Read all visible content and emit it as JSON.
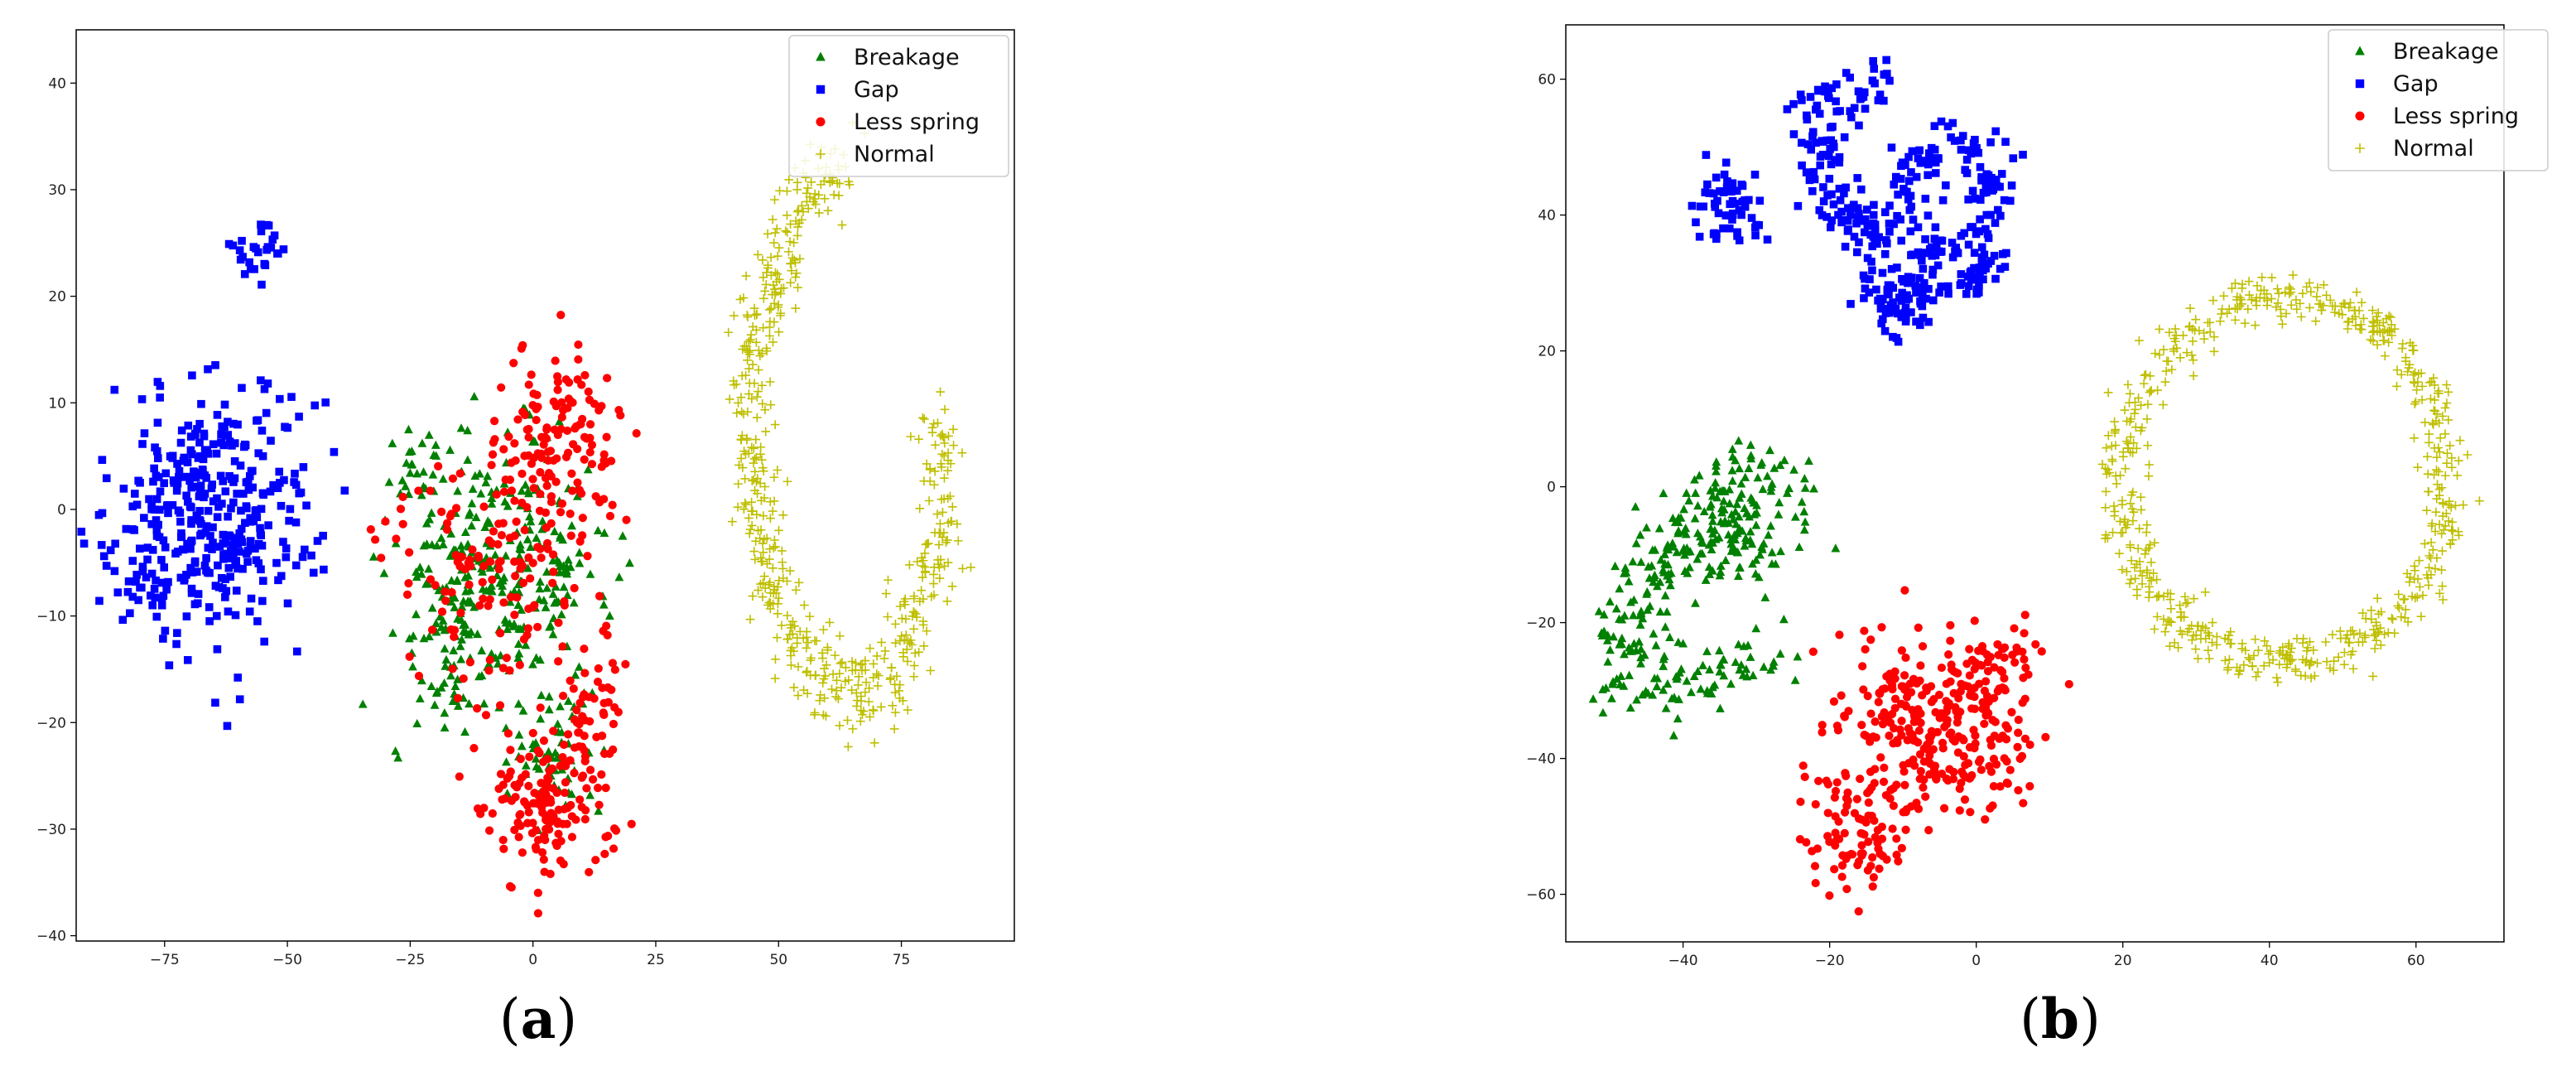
{
  "chart_data": [
    {
      "type": "scatter",
      "caption_letter": "a",
      "title": "",
      "xlabel": "",
      "ylabel": "",
      "xlim": [
        -93,
        98
      ],
      "ylim": [
        -40.5,
        45
      ],
      "xticks": [
        -75,
        -50,
        -25,
        0,
        25,
        50,
        75
      ],
      "xtick_labels": [
        "−75",
        "−50",
        "−25",
        "0",
        "25",
        "50",
        "75"
      ],
      "yticks": [
        -40,
        -30,
        -20,
        -10,
        0,
        10,
        20,
        30,
        40
      ],
      "ytick_labels": [
        "−40",
        "−30",
        "−20",
        "−10",
        "0",
        "10",
        "20",
        "30",
        "40"
      ],
      "grid": false,
      "legend_position": "top-right",
      "series": [
        {
          "name": "Breakage",
          "marker": "triangle",
          "color": "#008000",
          "regions": [
            {
              "shape": "blob",
              "center": [
                -6,
                -6
              ],
              "radius": [
                20,
                11
              ],
              "count": 270
            },
            {
              "shape": "blob",
              "center": [
                -15,
                -12
              ],
              "radius": [
                10,
                8
              ],
              "count": 60
            },
            {
              "shape": "blob",
              "center": [
                5,
                -23
              ],
              "radius": [
                8,
                5
              ],
              "count": 50
            },
            {
              "shape": "blob",
              "center": [
                -24,
                4
              ],
              "radius": [
                6,
                4
              ],
              "count": 25
            }
          ]
        },
        {
          "name": "Gap",
          "marker": "square",
          "color": "#0000ff",
          "regions": [
            {
              "shape": "blob",
              "center": [
                -65,
                0
              ],
              "radius": [
                19,
                11
              ],
              "count": 380
            },
            {
              "shape": "blob",
              "center": [
                -56,
                24.5
              ],
              "radius": [
                4.5,
                2.5
              ],
              "count": 28
            },
            {
              "shape": "blob",
              "center": [
                -80,
                -8
              ],
              "radius": [
                5,
                3
              ],
              "count": 18
            }
          ]
        },
        {
          "name": "Less spring",
          "marker": "circle",
          "color": "#ff0000",
          "regions": [
            {
              "shape": "blob",
              "center": [
                6,
                6
              ],
              "radius": [
                11,
                9
              ],
              "count": 140
            },
            {
              "shape": "blob",
              "center": [
                3,
                -28
              ],
              "radius": [
                12,
                6
              ],
              "count": 150
            },
            {
              "shape": "blob",
              "center": [
                -10,
                -5
              ],
              "radius": [
                20,
                12
              ],
              "count": 130
            },
            {
              "shape": "blob",
              "center": [
                12,
                -18
              ],
              "radius": [
                7,
                7
              ],
              "count": 50
            }
          ]
        },
        {
          "name": "Normal",
          "marker": "plus",
          "color": "#bfbf00",
          "regions": [
            {
              "shape": "path",
              "points": [
                [
                  62,
                  33
                ],
                [
                  52,
                  27
                ],
                [
                  46,
                  17
                ],
                [
                  44,
                  5
                ],
                [
                  47,
                  -5
                ],
                [
                  52,
                  -12
                ],
                [
                  60,
                  -16
                ],
                [
                  70,
                  -17
                ],
                [
                  77,
                  -12
                ],
                [
                  81,
                  -5
                ],
                [
                  84,
                  2
                ],
                [
                  82,
                  8
                ]
              ],
              "spread": 2.3,
              "count": 560
            }
          ]
        }
      ]
    },
    {
      "type": "scatter",
      "caption_letter": "b",
      "title": "",
      "xlabel": "",
      "ylabel": "",
      "xlim": [
        -56,
        72
      ],
      "ylim": [
        -67,
        68
      ],
      "xticks": [
        -40,
        -20,
        0,
        20,
        40,
        60
      ],
      "xtick_labels": [
        "−40",
        "−20",
        "0",
        "20",
        "40",
        "60"
      ],
      "yticks": [
        -60,
        -40,
        -20,
        0,
        20,
        40,
        60
      ],
      "ytick_labels": [
        "−60",
        "−40",
        "−20",
        "0",
        "20",
        "40",
        "60"
      ],
      "grid": false,
      "legend_position": "top-right",
      "series": [
        {
          "name": "Breakage",
          "marker": "triangle",
          "color": "#008000",
          "regions": [
            {
              "shape": "path",
              "points": [
                [
                  -23,
                  0
                ],
                [
                  -30,
                  3
                ],
                [
                  -38,
                  -5
                ],
                [
                  -48,
                  -18
                ],
                [
                  -45,
                  -30
                ],
                [
                  -36,
                  -30
                ],
                [
                  -28,
                  -25
                ]
              ],
              "spread": 2.8,
              "count": 260
            },
            {
              "shape": "blob",
              "center": [
                -33,
                -8
              ],
              "radius": [
                8,
                6
              ],
              "count": 90
            }
          ]
        },
        {
          "name": "Gap",
          "marker": "square",
          "color": "#0000ff",
          "regions": [
            {
              "shape": "path",
              "points": [
                [
                  -13,
                  60
                ],
                [
                  -22,
                  56
                ],
                [
                  -21,
                  45
                ],
                [
                  -13,
                  36
                ],
                [
                  -14,
                  28
                ],
                [
                  -10,
                  24
                ],
                [
                  -6,
                  34
                ],
                [
                  -10,
                  44
                ],
                [
                  -6,
                  50
                ],
                [
                  0,
                  50
                ],
                [
                  2,
                  42
                ],
                [
                  -1,
                  30
                ],
                [
                  2,
                  34
                ]
              ],
              "spread": 2.0,
              "count": 400
            },
            {
              "shape": "blob",
              "center": [
                -34,
                41
              ],
              "radius": [
                4,
                5
              ],
              "count": 60
            }
          ]
        },
        {
          "name": "Less spring",
          "marker": "circle",
          "color": "#ff0000",
          "regions": [
            {
              "shape": "blob",
              "center": [
                -6,
                -36
              ],
              "radius": [
                12,
                13
              ],
              "count": 300
            },
            {
              "shape": "blob",
              "center": [
                -16,
                -52
              ],
              "radius": [
                6,
                7
              ],
              "count": 80
            },
            {
              "shape": "blob",
              "center": [
                3,
                -26
              ],
              "radius": [
                6,
                6
              ],
              "count": 40
            }
          ]
        },
        {
          "name": "Normal",
          "marker": "plus",
          "color": "#bfbf00",
          "regions": [
            {
              "shape": "ring",
              "center": [
                42,
                1
              ],
              "radius": [
                22,
                27
              ],
              "spread": 1.6,
              "count": 620
            }
          ]
        }
      ]
    }
  ]
}
